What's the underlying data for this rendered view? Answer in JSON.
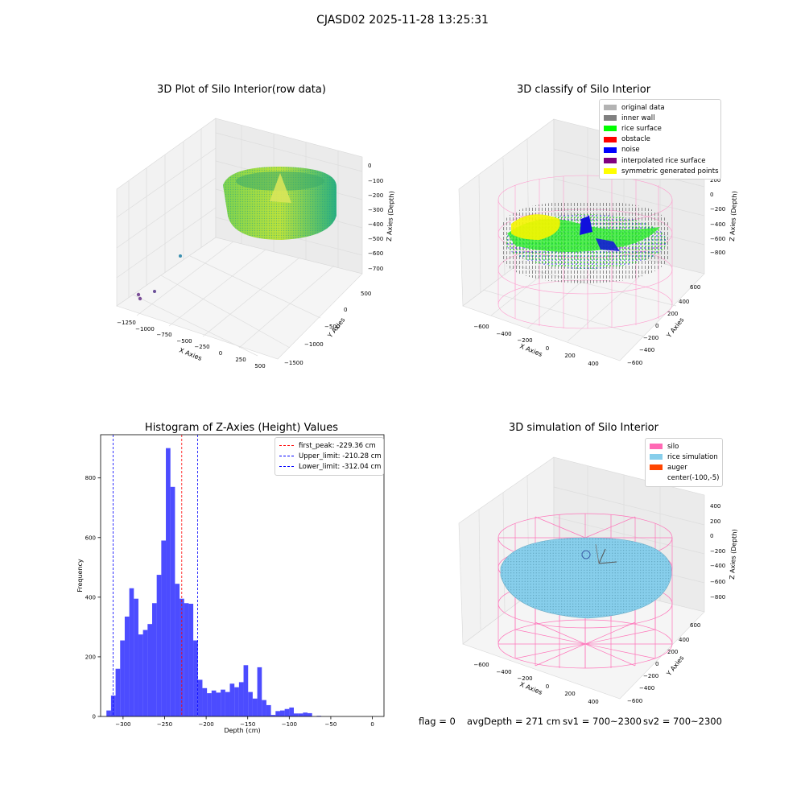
{
  "figure": {
    "suptitle": "CJASD02 2025-11-28 13:25:31",
    "footer": {
      "flag": "flag = 0",
      "avg_depth": "avgDepth = 271 cm",
      "sv1": "sv1 = 700~2300",
      "sv2": "sv2 = 700~2300"
    }
  },
  "chart_data": [
    {
      "type": "scatter",
      "title": "3D Plot of Silo Interior(row data)",
      "xlabel": "X Axies",
      "ylabel": "Y Axies",
      "zlabel": "Z Axies (Depth)",
      "x_ticks": [
        "−1250",
        "−1000",
        "−750",
        "−500",
        "−250",
        "0",
        "250",
        "500"
      ],
      "y_ticks": [
        "500",
        "0",
        "−500",
        "−1000",
        "−1500"
      ],
      "z_ticks": [
        "0",
        "−100",
        "−200",
        "−300",
        "−400",
        "−500",
        "−600",
        "−700"
      ],
      "xlim": [
        -1300,
        550
      ],
      "ylim": [
        -1550,
        600
      ],
      "zlim": [
        -750,
        20
      ],
      "colormap": "viridis"
    },
    {
      "type": "scatter",
      "title": "3D classify of Silo Interior",
      "xlabel": "X Axies",
      "ylabel": "Y Axies",
      "zlabel": "Z Axies (Depth)",
      "x_ticks": [
        "−600",
        "−400",
        "−200",
        "0",
        "200",
        "400"
      ],
      "y_ticks": [
        "600",
        "400",
        "200",
        "0",
        "−200",
        "−400",
        "−600"
      ],
      "z_ticks": [
        "200",
        "0",
        "−200",
        "−400",
        "−600",
        "−800"
      ],
      "legend": [
        {
          "label": "original data",
          "color": "#b3b3b3"
        },
        {
          "label": "inner wall",
          "color": "#808080"
        },
        {
          "label": "rice surface",
          "color": "#00ff00"
        },
        {
          "label": "obstacle",
          "color": "#ff0000"
        },
        {
          "label": "noise",
          "color": "#0000ff"
        },
        {
          "label": "interpolated rice surface",
          "color": "#800080"
        },
        {
          "label": "symmetric generated points",
          "color": "#ffff00"
        }
      ],
      "silo_wire_color": "#ff69b4"
    },
    {
      "type": "bar",
      "title": "Histogram of Z-Axies (Height) Values",
      "xlabel": "Depth (cm)",
      "ylabel": "Frequency",
      "bar_color": "#0000ff",
      "bin_start": -320,
      "bin_width": 5.5,
      "values": [
        20,
        70,
        160,
        255,
        335,
        430,
        395,
        275,
        290,
        310,
        380,
        475,
        590,
        900,
        770,
        445,
        395,
        380,
        378,
        255,
        123,
        95,
        78,
        87,
        80,
        90,
        82,
        110,
        98,
        115,
        172,
        82,
        60,
        165,
        55,
        38,
        5,
        18,
        20,
        25,
        30,
        10,
        10,
        13,
        11,
        0,
        2
      ],
      "xlim": [
        -327,
        14
      ],
      "ylim": [
        0,
        945
      ],
      "x_ticks": [
        -300,
        -250,
        -200,
        -150,
        -100,
        -50,
        0
      ],
      "x_tick_labels": [
        "−300",
        "−250",
        "−200",
        "−150",
        "−100",
        "−50",
        "0"
      ],
      "y_ticks": [
        0,
        200,
        400,
        600,
        800
      ],
      "y_tick_labels": [
        "0",
        "200",
        "400",
        "600",
        "800"
      ],
      "lines": [
        {
          "label": "first_peak: -229.36 cm",
          "value": -229.36,
          "color": "#ff0000"
        },
        {
          "label": "Upper_limit: -210.28 cm",
          "value": -210.28,
          "color": "#0000ff"
        },
        {
          "label": "Lower_limit: -312.04 cm",
          "value": -312.04,
          "color": "#0000ff"
        }
      ],
      "legend_position": "top-right"
    },
    {
      "type": "scatter",
      "title": "3D simulation of Silo Interior",
      "xlabel": "X Axies",
      "ylabel": "Y Axies",
      "zlabel": "Z Axies (Depth)",
      "x_ticks": [
        "−600",
        "−400",
        "−200",
        "0",
        "200",
        "400"
      ],
      "y_ticks": [
        "600",
        "400",
        "200",
        "0",
        "−200",
        "−400",
        "−600"
      ],
      "z_ticks": [
        "400",
        "200",
        "0",
        "−200",
        "−400",
        "−600",
        "−800"
      ],
      "legend": [
        {
          "label": "silo",
          "color": "#ff69b4"
        },
        {
          "label": "rice simulation",
          "color": "#87ceeb"
        },
        {
          "label": "auger",
          "color": "#ff4500"
        },
        {
          "label": "center(-100,-5)",
          "color": ""
        }
      ]
    }
  ]
}
